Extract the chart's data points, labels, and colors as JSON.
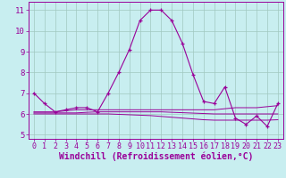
{
  "xlabel": "Windchill (Refroidissement éolien,°C)",
  "hours": [
    0,
    1,
    2,
    3,
    4,
    5,
    6,
    7,
    8,
    9,
    10,
    11,
    12,
    13,
    14,
    15,
    16,
    17,
    18,
    19,
    20,
    21,
    22,
    23
  ],
  "main_line": [
    7.0,
    6.5,
    6.1,
    6.2,
    6.3,
    6.3,
    6.1,
    7.0,
    8.0,
    9.1,
    10.5,
    11.0,
    11.0,
    10.5,
    9.4,
    7.9,
    6.6,
    6.5,
    7.3,
    5.8,
    5.5,
    5.9,
    5.4,
    6.5
  ],
  "flat_line1": [
    6.1,
    6.1,
    6.1,
    6.15,
    6.2,
    6.2,
    6.2,
    6.2,
    6.2,
    6.2,
    6.2,
    6.2,
    6.2,
    6.2,
    6.2,
    6.2,
    6.2,
    6.2,
    6.25,
    6.3,
    6.3,
    6.3,
    6.35,
    6.4
  ],
  "flat_line2": [
    6.0,
    6.0,
    6.0,
    6.0,
    6.0,
    6.0,
    6.0,
    6.0,
    5.98,
    5.96,
    5.94,
    5.92,
    5.88,
    5.84,
    5.8,
    5.76,
    5.72,
    5.7,
    5.7,
    5.7,
    5.7,
    5.7,
    5.7,
    5.72
  ],
  "flat_line3": [
    6.05,
    6.05,
    6.05,
    6.05,
    6.05,
    6.08,
    6.1,
    6.1,
    6.1,
    6.1,
    6.1,
    6.1,
    6.1,
    6.08,
    6.06,
    6.04,
    6.02,
    6.0,
    6.0,
    6.0,
    6.0,
    6.0,
    6.0,
    6.0
  ],
  "line_color": "#990099",
  "bg_color": "#c8eef0",
  "grid_color": "#a0c8c0",
  "ylim": [
    4.8,
    11.4
  ],
  "yticks": [
    5,
    6,
    7,
    8,
    9,
    10,
    11
  ],
  "tick_fontsize": 6.5,
  "label_fontsize": 7
}
